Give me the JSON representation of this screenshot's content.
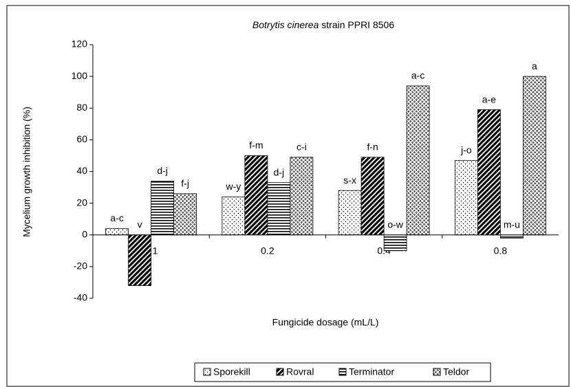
{
  "chart_data": {
    "type": "bar",
    "title": [
      "Botrytis cinerea",
      "strain PPRI 8506"
    ],
    "x_label": "Fungicide dosage (mL/L)",
    "y_label": "Mycelium growth inhibition (%)",
    "categories": [
      "0.1",
      "0.2",
      "0.4",
      "0.8"
    ],
    "series": [
      {
        "name": "Sporekill",
        "pattern": "dots",
        "values": [
          4,
          24,
          28,
          47
        ],
        "value_labels": [
          "a-c",
          "w-y",
          "s-x",
          "j-o"
        ]
      },
      {
        "name": "Rovral",
        "pattern": "diagonal",
        "values": [
          -32,
          50,
          49,
          79
        ],
        "value_labels": [
          "v",
          "f-m",
          "f-n",
          "a-e"
        ]
      },
      {
        "name": "Terminator",
        "pattern": "horizontal",
        "values": [
          34,
          33,
          -10,
          -2
        ],
        "value_labels": [
          "d-j",
          "d-j",
          "o-w",
          "m-u"
        ]
      },
      {
        "name": "Teldor",
        "pattern": "crosshatch",
        "values": [
          26,
          49,
          94,
          100
        ],
        "value_labels": [
          "f-j",
          "c-i",
          "a-c",
          "a"
        ]
      }
    ],
    "ylim": [
      -40,
      120
    ],
    "yticks": [
      -40,
      -20,
      0,
      20,
      40,
      60,
      80,
      100,
      120
    ],
    "legend": "bottom",
    "grid": false
  }
}
